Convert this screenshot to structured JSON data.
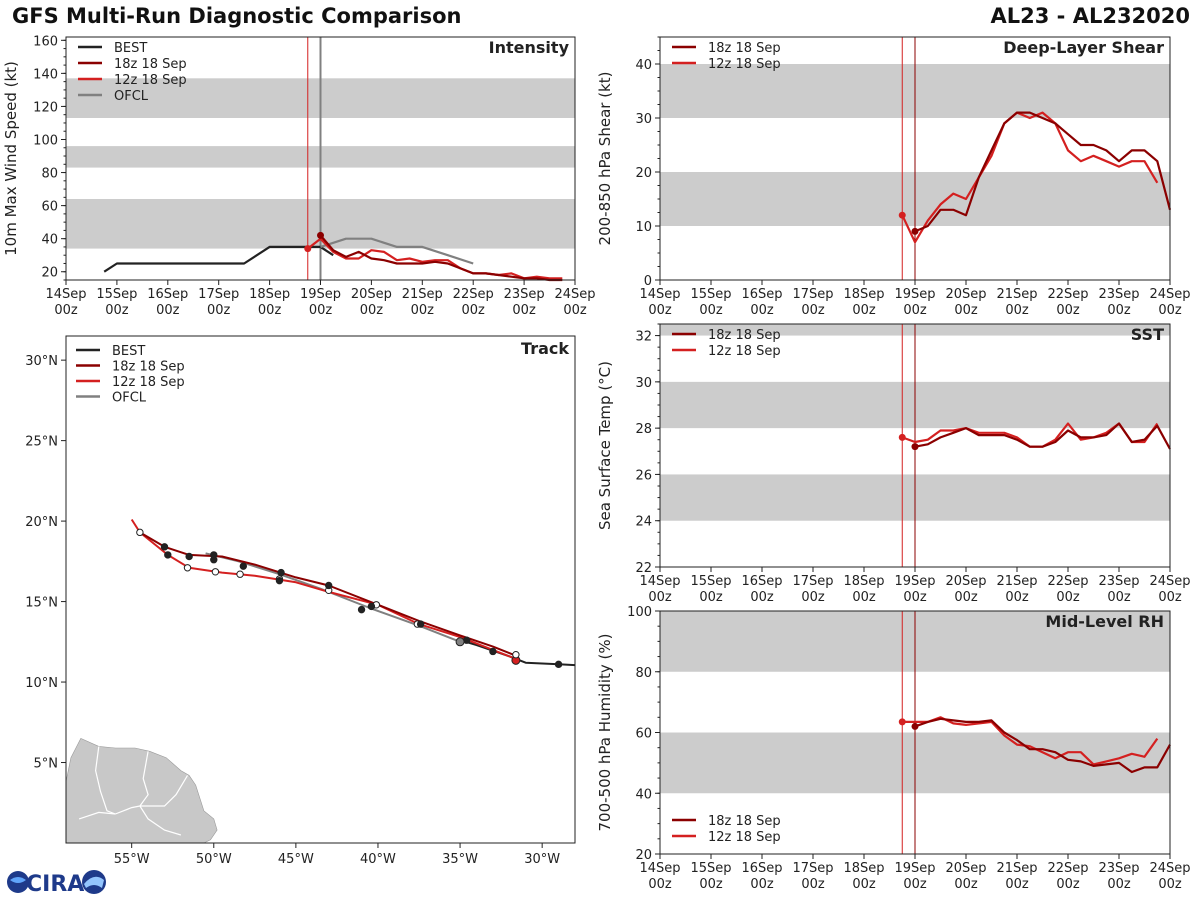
{
  "header": {
    "title": "GFS Multi-Run Diagnostic Comparison",
    "storm_id": "AL23 - AL232020"
  },
  "logo": {
    "text": "CIRA"
  },
  "colors": {
    "best": "#222222",
    "run18": "#8b0000",
    "run12": "#d42020",
    "ofcl": "#808080",
    "band": "#cccccc",
    "land": "#c8c8c8",
    "border": "#ffffff"
  },
  "time_axis": {
    "ticks": [
      {
        "day": "14Sep",
        "hour": "00z"
      },
      {
        "day": "15Sep",
        "hour": "00z"
      },
      {
        "day": "16Sep",
        "hour": "00z"
      },
      {
        "day": "17Sep",
        "hour": "00z"
      },
      {
        "day": "18Sep",
        "hour": "00z"
      },
      {
        "day": "19Sep",
        "hour": "00z"
      },
      {
        "day": "20Sep",
        "hour": "00z"
      },
      {
        "day": "21Sep",
        "hour": "00z"
      },
      {
        "day": "22Sep",
        "hour": "00z"
      },
      {
        "day": "23Sep",
        "hour": "00z"
      },
      {
        "day": "24Sep",
        "hour": "00z"
      }
    ]
  },
  "chart_data": [
    {
      "id": "intensity",
      "type": "line",
      "title": "Intensity",
      "ylabel": "10m Max Wind Speed (kt)",
      "xlim": [
        0,
        10
      ],
      "ylim": [
        15,
        162
      ],
      "yticks": [
        20,
        40,
        60,
        80,
        100,
        120,
        140,
        160
      ],
      "bands": [
        [
          34,
          64
        ],
        [
          83,
          96
        ],
        [
          113,
          137
        ]
      ],
      "vlines": [
        {
          "x": 4.75,
          "series": "run12"
        },
        {
          "x": 5.0,
          "series": "run18"
        },
        {
          "x": 5.0,
          "series": "ofcl"
        }
      ],
      "legend": [
        {
          "label": "BEST",
          "series": "best"
        },
        {
          "label": "18z 18 Sep",
          "series": "run18"
        },
        {
          "label": "12z 18 Sep",
          "series": "run12"
        },
        {
          "label": "OFCL",
          "series": "ofcl"
        }
      ],
      "series": [
        {
          "name": "BEST",
          "key": "best",
          "x": [
            0.75,
            1.0,
            1.5,
            2.0,
            2.5,
            3.0,
            3.5,
            4.0,
            4.25,
            4.5,
            4.75,
            5.0,
            5.25
          ],
          "y": [
            20,
            25,
            25,
            25,
            25,
            25,
            25,
            35,
            35,
            35,
            35,
            35,
            30
          ]
        },
        {
          "name": "OFCL",
          "key": "ofcl",
          "x": [
            5.0,
            5.5,
            6.0,
            6.5,
            7.0,
            7.5,
            8.0
          ],
          "y": [
            35,
            40,
            40,
            35,
            35,
            30,
            25
          ]
        },
        {
          "name": "12z 18 Sep",
          "key": "run12",
          "x": [
            4.75,
            5.0,
            5.25,
            5.5,
            5.75,
            6.0,
            6.25,
            6.5,
            6.75,
            7.0,
            7.25,
            7.5,
            7.75,
            8.0,
            8.25,
            8.5,
            8.75,
            9.0,
            9.25,
            9.5,
            9.75
          ],
          "y": [
            34,
            40,
            32,
            28,
            28,
            33,
            32,
            27,
            28,
            26,
            27,
            27,
            22,
            19,
            19,
            18,
            19,
            16,
            17,
            16,
            16
          ],
          "marker_start": true
        },
        {
          "name": "18z 18 Sep",
          "key": "run18",
          "x": [
            5.0,
            5.25,
            5.5,
            5.75,
            6.0,
            6.25,
            6.5,
            6.75,
            7.0,
            7.25,
            7.5,
            7.75,
            8.0,
            8.25,
            8.5,
            8.75,
            9.0,
            9.25,
            9.5,
            9.75
          ],
          "y": [
            42,
            33,
            29,
            32,
            28,
            27,
            25,
            25,
            25,
            26,
            25,
            22,
            19,
            19,
            18,
            17,
            16,
            16,
            15,
            15
          ],
          "marker_start": true
        }
      ]
    },
    {
      "id": "shear",
      "type": "line",
      "title": "Deep-Layer Shear",
      "ylabel": "200-850 hPa Shear (kt)",
      "xlim": [
        0,
        10
      ],
      "ylim": [
        0,
        45
      ],
      "yticks": [
        0,
        10,
        20,
        30,
        40
      ],
      "bands": [
        [
          10,
          20
        ],
        [
          30,
          40
        ]
      ],
      "vlines": [
        {
          "x": 4.75,
          "series": "run12"
        },
        {
          "x": 5.0,
          "series": "run18"
        }
      ],
      "legend": [
        {
          "label": "18z 18 Sep",
          "series": "run18"
        },
        {
          "label": "12z 18 Sep",
          "series": "run12"
        }
      ],
      "series": [
        {
          "name": "12z 18 Sep",
          "key": "run12",
          "x": [
            4.75,
            5.0,
            5.25,
            5.5,
            5.75,
            6.0,
            6.25,
            6.5,
            6.75,
            7.0,
            7.25,
            7.5,
            7.75,
            8.0,
            8.25,
            8.5,
            8.75,
            9.0,
            9.25,
            9.5,
            9.75
          ],
          "y": [
            12,
            7,
            11,
            14,
            16,
            15,
            19,
            23,
            29,
            31,
            30,
            31,
            29,
            24,
            22,
            23,
            22,
            21,
            22,
            22,
            18
          ],
          "marker_start": true
        },
        {
          "name": "18z 18 Sep",
          "key": "run18",
          "x": [
            5.0,
            5.25,
            5.5,
            5.75,
            6.0,
            6.25,
            6.5,
            6.75,
            7.0,
            7.25,
            7.5,
            7.75,
            8.0,
            8.25,
            8.5,
            8.75,
            9.0,
            9.25,
            9.5,
            9.75,
            10.0
          ],
          "y": [
            9,
            10,
            13,
            13,
            12,
            19,
            24,
            29,
            31,
            31,
            30,
            29,
            27,
            25,
            25,
            24,
            22,
            24,
            24,
            22,
            13
          ],
          "marker_start": true
        }
      ]
    },
    {
      "id": "sst",
      "type": "line",
      "title": "SST",
      "ylabel": "Sea Surface Temp (°C)",
      "xlim": [
        0,
        10
      ],
      "ylim": [
        22,
        32.5
      ],
      "yticks": [
        22,
        24,
        26,
        28,
        30,
        32
      ],
      "bands": [
        [
          24,
          26
        ],
        [
          28,
          30
        ],
        [
          32,
          32.5
        ]
      ],
      "vlines": [
        {
          "x": 4.75,
          "series": "run12"
        },
        {
          "x": 5.0,
          "series": "run18"
        }
      ],
      "legend": [
        {
          "label": "18z 18 Sep",
          "series": "run18"
        },
        {
          "label": "12z 18 Sep",
          "series": "run12"
        }
      ],
      "series": [
        {
          "name": "12z 18 Sep",
          "key": "run12",
          "x": [
            4.75,
            5.0,
            5.25,
            5.5,
            5.75,
            6.0,
            6.25,
            6.5,
            6.75,
            7.0,
            7.25,
            7.5,
            7.75,
            8.0,
            8.25,
            8.5,
            8.75,
            9.0,
            9.25,
            9.5,
            9.75
          ],
          "y": [
            27.6,
            27.4,
            27.5,
            27.9,
            27.9,
            28.0,
            27.8,
            27.8,
            27.8,
            27.6,
            27.2,
            27.2,
            27.5,
            28.2,
            27.5,
            27.6,
            27.8,
            28.2,
            27.4,
            27.4,
            28.2
          ],
          "marker_start": true
        },
        {
          "name": "18z 18 Sep",
          "key": "run18",
          "x": [
            5.0,
            5.25,
            5.5,
            5.75,
            6.0,
            6.25,
            6.5,
            6.75,
            7.0,
            7.25,
            7.5,
            7.75,
            8.0,
            8.25,
            8.5,
            8.75,
            9.0,
            9.25,
            9.5,
            9.75,
            10.0
          ],
          "y": [
            27.2,
            27.3,
            27.6,
            27.8,
            28.0,
            27.7,
            27.7,
            27.7,
            27.5,
            27.2,
            27.2,
            27.4,
            27.9,
            27.6,
            27.6,
            27.7,
            28.2,
            27.4,
            27.5,
            28.1,
            27.1
          ],
          "marker_start": true
        }
      ]
    },
    {
      "id": "rh",
      "type": "line",
      "title": "Mid-Level RH",
      "ylabel": "700-500 hPa Humidity (%)",
      "xlim": [
        0,
        10
      ],
      "ylim": [
        20,
        100
      ],
      "yticks": [
        20,
        40,
        60,
        80,
        100
      ],
      "bands": [
        [
          40,
          60
        ],
        [
          80,
          100
        ]
      ],
      "vlines": [
        {
          "x": 4.75,
          "series": "run12"
        },
        {
          "x": 5.0,
          "series": "run18"
        }
      ],
      "legend": [
        {
          "label": "18z 18 Sep",
          "series": "run18"
        },
        {
          "label": "12z 18 Sep",
          "series": "run12"
        }
      ],
      "legend_position": "bottom-left",
      "series": [
        {
          "name": "12z 18 Sep",
          "key": "run12",
          "x": [
            4.75,
            5.0,
            5.25,
            5.5,
            5.75,
            6.0,
            6.25,
            6.5,
            6.75,
            7.0,
            7.25,
            7.5,
            7.75,
            8.0,
            8.25,
            8.5,
            8.75,
            9.0,
            9.25,
            9.5,
            9.75
          ],
          "y": [
            63.5,
            63.5,
            63.5,
            65,
            63,
            62.5,
            63,
            63.5,
            59,
            56,
            55.5,
            53.5,
            51.5,
            53.5,
            53.5,
            49.5,
            50.5,
            51.5,
            53,
            52,
            58
          ],
          "marker_start": true
        },
        {
          "name": "18z 18 Sep",
          "key": "run18",
          "x": [
            5.0,
            5.25,
            5.5,
            5.75,
            6.0,
            6.25,
            6.5,
            6.75,
            7.0,
            7.25,
            7.5,
            7.75,
            8.0,
            8.25,
            8.5,
            8.75,
            9.0,
            9.25,
            9.5,
            9.75,
            10.0
          ],
          "y": [
            62,
            63.5,
            64.5,
            64,
            63.5,
            63.5,
            64,
            60,
            57.5,
            54.5,
            54.5,
            53.5,
            51,
            50.5,
            49,
            49.5,
            50,
            47,
            48.5,
            48.5,
            56
          ],
          "marker_start": true
        }
      ]
    },
    {
      "id": "track",
      "type": "line",
      "title": "Track",
      "xlim": [
        -59,
        -28
      ],
      "ylim": [
        0,
        31.5
      ],
      "xticks": [
        {
          "v": -55,
          "label": "55°W"
        },
        {
          "v": -50,
          "label": "50°W"
        },
        {
          "v": -45,
          "label": "45°W"
        },
        {
          "v": -40,
          "label": "40°W"
        },
        {
          "v": -35,
          "label": "35°W"
        },
        {
          "v": -30,
          "label": "30°W"
        }
      ],
      "yticks": [
        {
          "v": 5,
          "label": "5°N"
        },
        {
          "v": 10,
          "label": "10°N"
        },
        {
          "v": 15,
          "label": "15°N"
        },
        {
          "v": 20,
          "label": "20°N"
        },
        {
          "v": 25,
          "label": "25°N"
        },
        {
          "v": 30,
          "label": "30°N"
        }
      ],
      "legend": [
        {
          "label": "BEST",
          "series": "best"
        },
        {
          "label": "18z 18 Sep",
          "series": "run18"
        },
        {
          "label": "12z 18 Sep",
          "series": "run12"
        },
        {
          "label": "OFCL",
          "series": "ofcl"
        }
      ],
      "series": [
        {
          "name": "BEST",
          "key": "best",
          "lon": [
            -28,
            -29,
            -30,
            -31,
            -32,
            -33,
            -34,
            -35
          ],
          "lat": [
            11.05,
            11.1,
            11.15,
            11.2,
            11.6,
            11.95,
            12.3,
            12.6
          ],
          "markers": [
            {
              "lon": -29.0,
              "lat": 11.1
            },
            {
              "lon": -34.6,
              "lat": 12.6
            }
          ]
        },
        {
          "name": "OFCL",
          "key": "ofcl",
          "lon": [
            -35,
            -37.5,
            -40.5,
            -43.5,
            -46,
            -48.5,
            -50.5
          ],
          "lat": [
            12.5,
            13.5,
            14.6,
            15.8,
            16.7,
            17.5,
            18.0
          ],
          "markers": [
            {
              "lon": -35.0,
              "lat": 12.5
            }
          ]
        },
        {
          "name": "12z 18 Sep",
          "key": "run12",
          "lon": [
            -31.5,
            -33,
            -35,
            -37.5,
            -40,
            -43,
            -45,
            -47.5,
            -49.5,
            -51.5,
            -52.8,
            -54.5,
            -55.0
          ],
          "lat": [
            11.4,
            12.0,
            12.8,
            13.6,
            14.8,
            15.6,
            16.2,
            16.6,
            16.8,
            17.1,
            17.9,
            19.3,
            20.1
          ],
          "markers": [
            {
              "lon": -31.6,
              "lat": 11.35
            },
            {
              "lon": -33.0,
              "lat": 11.9
            },
            {
              "lon": -37.6,
              "lat": 13.6
            },
            {
              "lon": -40.1,
              "lat": 14.8
            },
            {
              "lon": -43.0,
              "lat": 15.7
            },
            {
              "lon": -46.0,
              "lat": 16.4
            },
            {
              "lon": -48.4,
              "lat": 16.7
            },
            {
              "lon": -49.9,
              "lat": 16.85
            },
            {
              "lon": -51.6,
              "lat": 17.1
            },
            {
              "lon": -54.5,
              "lat": 19.3
            }
          ]
        },
        {
          "name": "18z 18 Sep",
          "key": "run18",
          "lon": [
            -31.5,
            -33,
            -35,
            -37.5,
            -40,
            -43,
            -45,
            -47.5,
            -49.5,
            -51.5,
            -53,
            -54.5
          ],
          "lat": [
            11.6,
            12.2,
            12.9,
            13.8,
            14.8,
            16.0,
            16.5,
            17.3,
            17.8,
            17.9,
            18.4,
            19.3
          ],
          "markers": [
            {
              "lon": -31.6,
              "lat": 11.7
            },
            {
              "lon": -37.4,
              "lat": 13.6
            },
            {
              "lon": -40.4,
              "lat": 14.7
            },
            {
              "lon": -43.0,
              "lat": 16.0
            },
            {
              "lon": -45.9,
              "lat": 16.8
            },
            {
              "lon": -48.2,
              "lat": 17.2
            },
            {
              "lon": -50.0,
              "lat": 17.9
            },
            {
              "lon": -51.5,
              "lat": 17.8
            },
            {
              "lon": -53.0,
              "lat": 18.4
            }
          ]
        },
        {
          "name": "BEST (old)",
          "key": "best",
          "lon": [],
          "lat": [],
          "markers": [
            {
              "lon": -41.0,
              "lat": 14.5
            },
            {
              "lon": -46.0,
              "lat": 16.3
            },
            {
              "lon": -50.0,
              "lat": 17.6
            },
            {
              "lon": -52.8,
              "lat": 17.9
            }
          ]
        }
      ]
    }
  ]
}
